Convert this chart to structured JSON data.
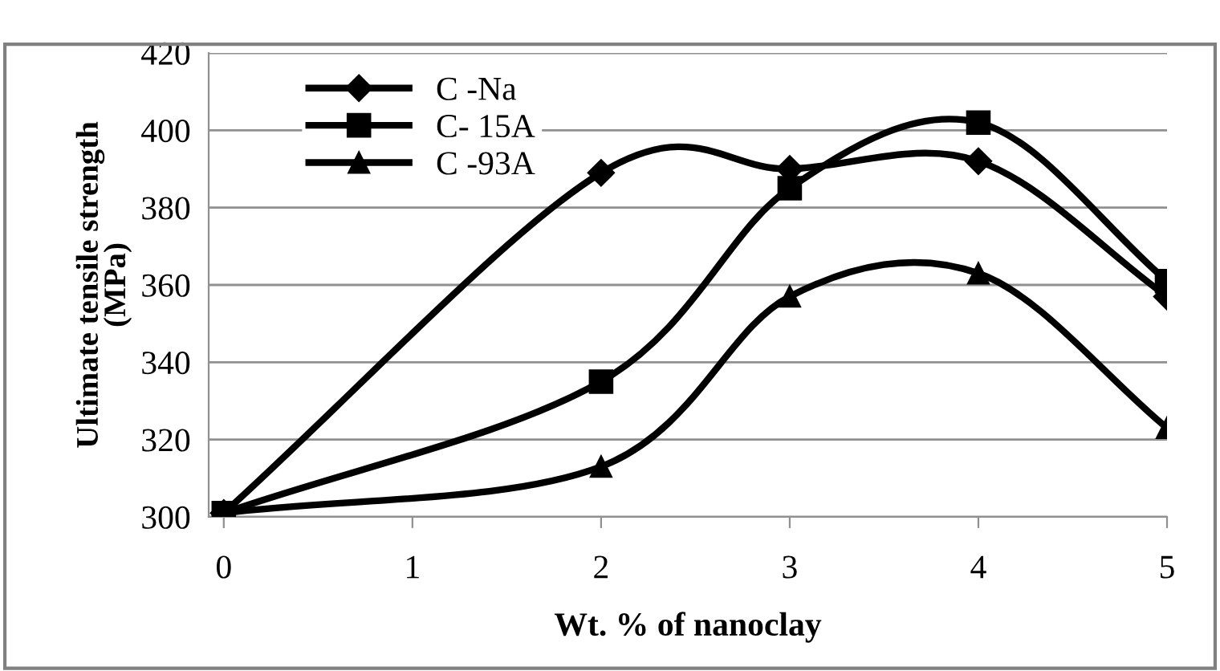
{
  "chart_data": {
    "type": "line",
    "xlabel": "Wt. % of nanoclay",
    "ylabel": "Ultimate tensile strength\n(MPa)",
    "x": [
      0,
      2,
      3,
      4,
      5
    ],
    "series": [
      {
        "name": "C -Na",
        "color": "#000000",
        "marker": "diamond",
        "values": [
          301,
          389,
          390,
          392,
          357
        ]
      },
      {
        "name": "C- 15A",
        "color": "#000000",
        "marker": "square",
        "values": [
          301,
          335,
          385,
          402,
          361
        ]
      },
      {
        "name": "C -93A",
        "color": "#000000",
        "marker": "triangle",
        "values": [
          301,
          313,
          357,
          363,
          323
        ]
      }
    ],
    "xlim": [
      -0.08,
      5
    ],
    "xticks": [
      0,
      1,
      2,
      3,
      4,
      5
    ],
    "ylim": [
      300,
      420
    ],
    "yticks": [
      300,
      320,
      340,
      360,
      380,
      400,
      420
    ],
    "grid": "y",
    "legend": "top left",
    "line_style": "solid"
  }
}
